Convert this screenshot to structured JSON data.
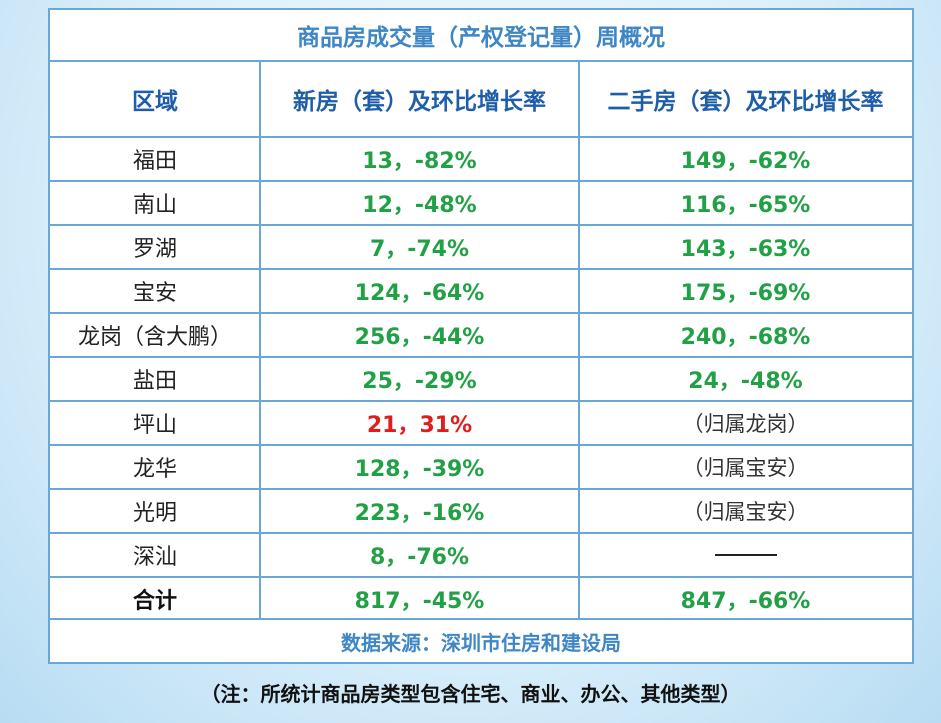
{
  "title": "商品房成交量（产权登记量）周概况",
  "headers": [
    "区域",
    "新房（套）及环比增长率",
    "二手房（套）及环比增长率"
  ],
  "rows": [
    {
      "district": "福田",
      "new": "13，-82%",
      "resale": "149，-62%"
    },
    {
      "district": "南山",
      "new": "12，-48%",
      "resale": "116，-65%"
    },
    {
      "district": "罗湖",
      "new": "7，-74%",
      "resale": "143，-63%"
    },
    {
      "district": "宝安",
      "new": "124，-64%",
      "resale": "175，-69%"
    },
    {
      "district": "龙岗（含大鹏）",
      "new": "256，-44%",
      "resale": "240，-68%"
    },
    {
      "district": "盐田",
      "new": "25，-29%",
      "resale": "24，-48%"
    },
    {
      "district": "坪山",
      "new": "21，31%",
      "resale": "（归属龙岗）"
    },
    {
      "district": "龙华",
      "new": "128，-39%",
      "resale": "（归属宝安）"
    },
    {
      "district": "光明",
      "new": "223，-16%",
      "resale": "（归属宝安）"
    },
    {
      "district": "深汕",
      "new": "8，-76%",
      "resale": ""
    }
  ],
  "total": {
    "label": "合计",
    "new": "817，-45%",
    "resale": "847，-66%"
  },
  "source": "数据来源：深圳市住房和建设局",
  "footnote": "（注：所统计商品房类型包含住宅、商业、办公、其他类型）",
  "colors": {
    "border": "#6aa7d4",
    "title": "#3e86c4",
    "header": "#1e5ea8",
    "decrease": "#22a045",
    "increase": "#e01d1d"
  }
}
